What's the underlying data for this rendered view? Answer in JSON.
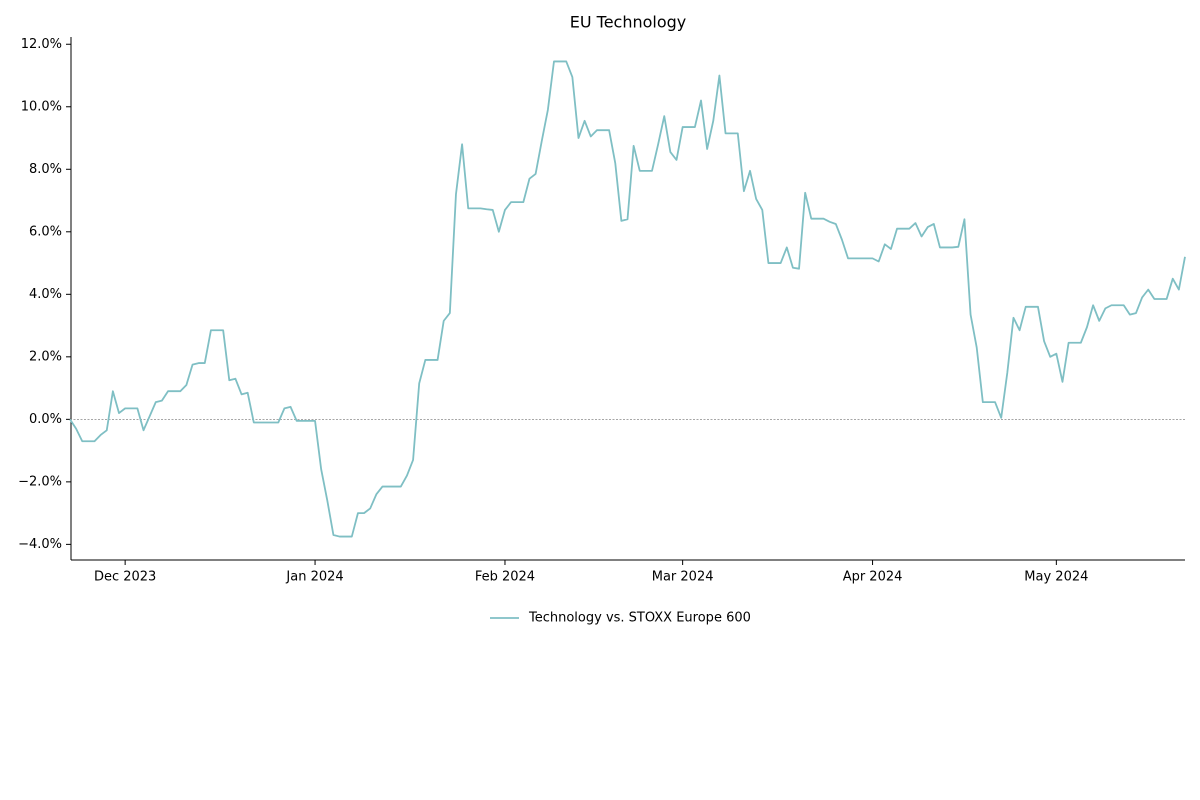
{
  "chart_data": {
    "type": "line",
    "title": "EU Technology",
    "categories": [
      null,
      null,
      null,
      null,
      null,
      null,
      null,
      null,
      null,
      "Dec 2023",
      null,
      null,
      null,
      null,
      null,
      null,
      null,
      null,
      null,
      null,
      null,
      null,
      null,
      null,
      null,
      null,
      null,
      null,
      null,
      null,
      null,
      null,
      null,
      null,
      null,
      null,
      null,
      null,
      null,
      null,
      "Jan 2024",
      null,
      null,
      null,
      null,
      null,
      null,
      null,
      null,
      null,
      null,
      null,
      null,
      null,
      null,
      null,
      null,
      null,
      null,
      null,
      null,
      null,
      null,
      null,
      null,
      null,
      null,
      null,
      null,
      null,
      null,
      "Feb 2024",
      null,
      null,
      null,
      null,
      null,
      null,
      null,
      null,
      null,
      null,
      null,
      null,
      null,
      null,
      null,
      null,
      null,
      null,
      null,
      null,
      null,
      null,
      null,
      null,
      null,
      null,
      null,
      null,
      "Mar 2024",
      null,
      null,
      null,
      null,
      null,
      null,
      null,
      null,
      null,
      null,
      null,
      null,
      null,
      null,
      null,
      null,
      null,
      null,
      null,
      null,
      null,
      null,
      null,
      null,
      null,
      null,
      null,
      null,
      null,
      null,
      "Apr 2024",
      null,
      null,
      null,
      null,
      null,
      null,
      null,
      null,
      null,
      null,
      null,
      null,
      null,
      null,
      null,
      null,
      null,
      null,
      null,
      null,
      null,
      null,
      null,
      null,
      null,
      null,
      null,
      null,
      null,
      "May 2024",
      null,
      null,
      null,
      null,
      null,
      null,
      null,
      null,
      null,
      null,
      null,
      null,
      null,
      null,
      null,
      null,
      null,
      null,
      null,
      null,
      null
    ],
    "series": [
      {
        "name": "Technology vs. STOXX Europe 600",
        "color": "#7fbfc4",
        "values": [
          0.0,
          -0.3,
          -0.7,
          -0.7,
          -0.7,
          -0.5,
          -0.35,
          0.9,
          0.2,
          0.35,
          0.35,
          0.35,
          -0.35,
          0.1,
          0.55,
          0.6,
          0.9,
          0.9,
          0.9,
          1.1,
          1.75,
          1.8,
          1.8,
          2.85,
          2.85,
          2.85,
          1.25,
          1.3,
          0.8,
          0.85,
          -0.1,
          -0.1,
          -0.1,
          -0.1,
          -0.1,
          0.35,
          0.4,
          -0.05,
          -0.05,
          -0.05,
          -0.05,
          -1.6,
          -2.6,
          -3.7,
          -3.75,
          -3.75,
          -3.75,
          -3.0,
          -3.0,
          -2.85,
          -2.4,
          -2.15,
          -2.15,
          -2.15,
          -2.15,
          -1.8,
          -1.3,
          1.15,
          1.9,
          1.9,
          1.9,
          3.15,
          3.4,
          7.2,
          8.8,
          6.75,
          6.75,
          6.75,
          6.72,
          6.7,
          6.0,
          6.7,
          6.95,
          6.95,
          6.95,
          7.7,
          7.85,
          8.9,
          9.9,
          11.45,
          11.45,
          11.45,
          10.95,
          9.0,
          9.55,
          9.05,
          9.25,
          9.25,
          9.25,
          8.2,
          6.35,
          6.4,
          8.75,
          7.95,
          7.95,
          7.95,
          8.8,
          9.7,
          8.55,
          8.3,
          9.35,
          9.35,
          9.35,
          10.2,
          8.65,
          9.55,
          11.0,
          9.15,
          9.15,
          9.15,
          7.3,
          7.95,
          7.05,
          6.7,
          5.0,
          5.0,
          5.0,
          5.5,
          4.85,
          4.82,
          7.25,
          6.42,
          6.42,
          6.42,
          6.32,
          6.25,
          5.75,
          5.15,
          5.15,
          5.15,
          5.15,
          5.15,
          5.05,
          5.6,
          5.45,
          6.1,
          6.1,
          6.1,
          6.28,
          5.85,
          6.15,
          6.25,
          5.5,
          5.5,
          5.5,
          5.52,
          6.4,
          3.35,
          2.3,
          0.55,
          0.55,
          0.55,
          0.05,
          1.5,
          3.25,
          2.85,
          3.6,
          3.6,
          3.6,
          2.5,
          2.0,
          2.1,
          1.2,
          2.45,
          2.45,
          2.45,
          2.95,
          3.65,
          3.15,
          3.55,
          3.65,
          3.65,
          3.65,
          3.35,
          3.4,
          3.9,
          4.15,
          3.85,
          3.85,
          3.85,
          4.5,
          4.15,
          5.2
        ]
      }
    ],
    "ylim": [
      -4.5,
      12.2
    ],
    "yticks": [
      {
        "value": -4,
        "label": "−4.0%"
      },
      {
        "value": -2,
        "label": "−2.0%"
      },
      {
        "value": 0,
        "label": "0.0%"
      },
      {
        "value": 2,
        "label": "2.0%"
      },
      {
        "value": 4,
        "label": "4.0%"
      },
      {
        "value": 6,
        "label": "6.0%"
      },
      {
        "value": 8,
        "label": "8.0%"
      },
      {
        "value": 10,
        "label": "10.0%"
      },
      {
        "value": 12,
        "label": "12.0%"
      }
    ],
    "reference_line": 0,
    "legend": "lower center"
  }
}
